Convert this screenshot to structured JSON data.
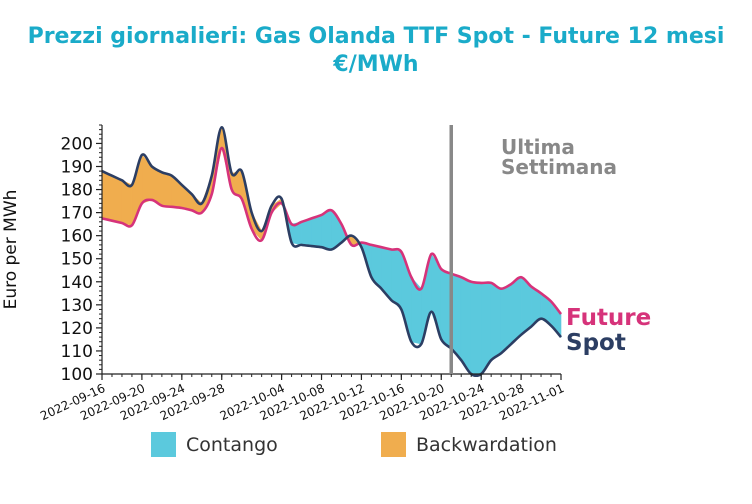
{
  "chart_data": {
    "type": "area",
    "title_line1": "Prezzi giornalieri: Gas Olanda TTF Spot - Future 12 mesi",
    "title_line2": "€/MWh",
    "ylabel": "Euro per MWh",
    "xlabel": "",
    "ylim": [
      100,
      208
    ],
    "yticks": [
      100,
      110,
      120,
      130,
      140,
      150,
      160,
      170,
      180,
      190,
      200
    ],
    "xlim": [
      "2022-09-16",
      "2022-11-01"
    ],
    "xtick_labels": [
      "2022-09-16",
      "2022-09-20",
      "2022-09-24",
      "2022-09-28",
      "2022-10-04",
      "2022-10-08",
      "2022-10-12",
      "2022-10-16",
      "2022-10-20",
      "2022-10-24",
      "2022-10-28",
      "2022-11-01"
    ],
    "x": [
      "2022-09-16",
      "2022-09-17",
      "2022-09-18",
      "2022-09-19",
      "2022-09-20",
      "2022-09-21",
      "2022-09-22",
      "2022-09-23",
      "2022-09-24",
      "2022-09-25",
      "2022-09-26",
      "2022-09-27",
      "2022-09-28",
      "2022-09-29",
      "2022-09-30",
      "2022-10-01",
      "2022-10-02",
      "2022-10-03",
      "2022-10-04",
      "2022-10-05",
      "2022-10-06",
      "2022-10-07",
      "2022-10-08",
      "2022-10-09",
      "2022-10-10",
      "2022-10-11",
      "2022-10-12",
      "2022-10-13",
      "2022-10-14",
      "2022-10-15",
      "2022-10-16",
      "2022-10-17",
      "2022-10-18",
      "2022-10-19",
      "2022-10-20",
      "2022-10-21",
      "2022-10-22",
      "2022-10-23",
      "2022-10-24",
      "2022-10-25",
      "2022-10-26",
      "2022-10-27",
      "2022-10-28",
      "2022-10-29",
      "2022-10-30",
      "2022-10-31",
      "2022-11-01"
    ],
    "series": [
      {
        "name": "Future",
        "color": "#d6337a",
        "values": [
          167.5,
          166.5,
          165.5,
          164.5,
          174,
          175.5,
          173,
          172.5,
          172,
          171,
          170,
          178,
          198,
          180,
          176,
          163,
          158,
          170,
          174,
          165,
          166,
          167.5,
          169,
          171,
          165,
          156,
          157,
          156,
          155,
          154,
          153,
          142,
          137,
          152,
          145.5,
          143.5,
          142,
          140,
          139.5,
          139.5,
          137,
          139,
          142,
          138,
          135,
          131.5,
          126
        ]
      },
      {
        "name": "Spot",
        "color": "#2c3e63",
        "values": [
          188,
          186,
          184,
          182,
          195,
          190,
          187.5,
          186,
          182,
          178,
          174,
          186,
          207,
          187,
          188,
          170,
          162,
          173,
          176,
          157,
          156,
          155.5,
          155,
          154,
          157,
          160,
          155,
          142,
          137,
          132,
          128,
          114,
          113,
          127,
          115,
          111,
          106,
          100,
          100,
          106,
          109,
          113,
          117,
          120.5,
          124,
          121,
          116
        ]
      }
    ],
    "annotations": {
      "line1": "Ultima",
      "line2": "Settimana",
      "vline_date": "2022-10-21"
    },
    "end_labels": {
      "future": "Future",
      "spot": "Spot"
    },
    "legend": [
      {
        "label": "Contango",
        "color": "#5bc9dd"
      },
      {
        "label": "Backwardation",
        "color": "#f0ad4e"
      }
    ],
    "grid": false
  }
}
